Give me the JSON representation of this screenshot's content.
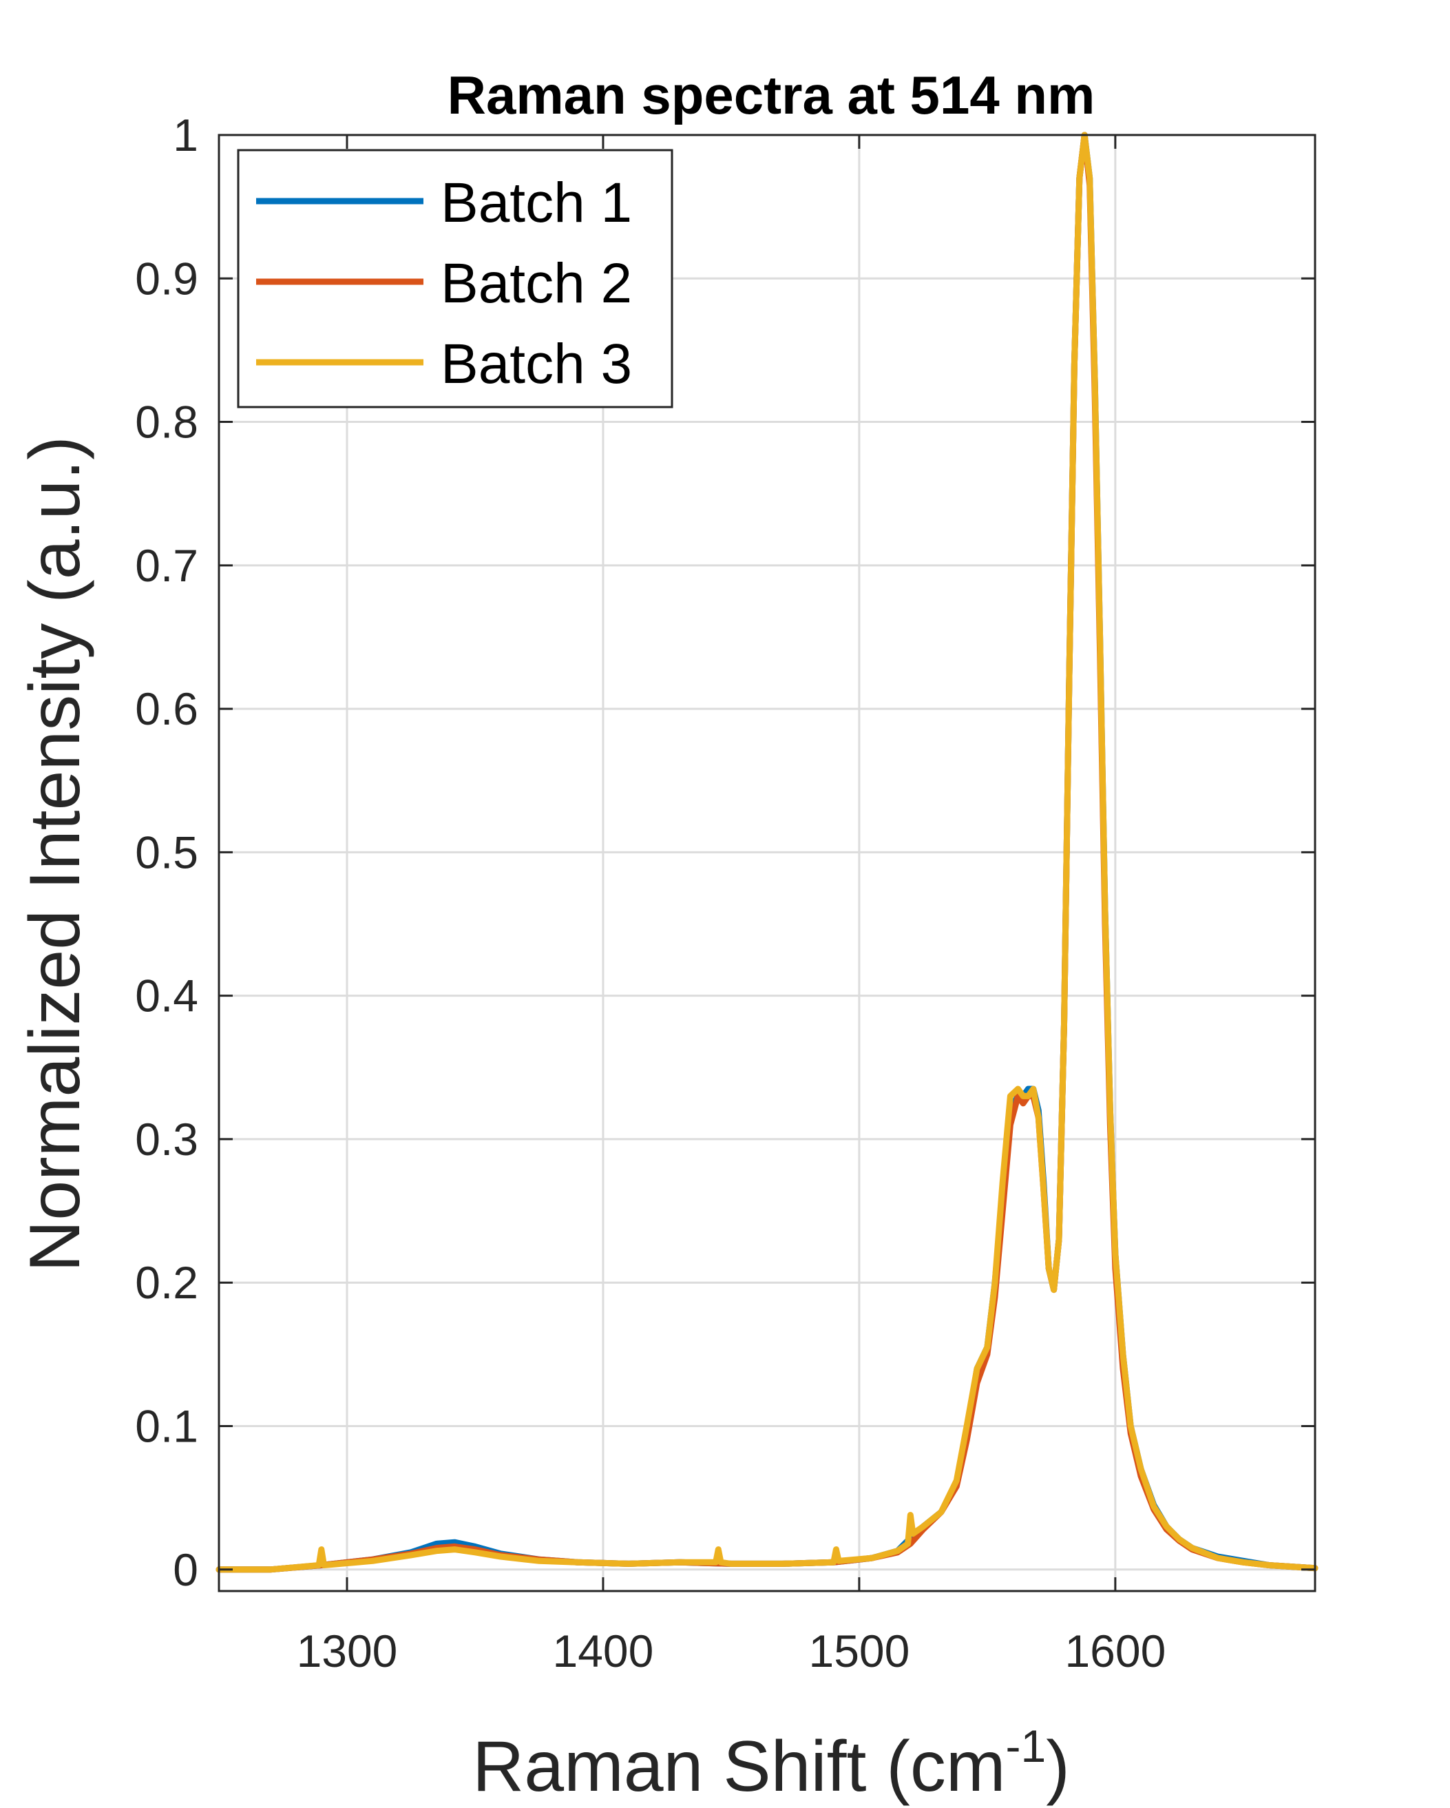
{
  "chart_data": {
    "type": "line",
    "title": "Raman spectra at 514 nm",
    "xlabel": "Raman Shift (cm",
    "xlabel_superscript": "-1",
    "xlabel_close": ")",
    "ylabel": "Normalized Intensity (a.u.)",
    "xlim": [
      1250,
      1678
    ],
    "ylim": [
      -0.015,
      1
    ],
    "xticks": [
      1300,
      1400,
      1500,
      1600
    ],
    "xtick_labels": [
      "1300",
      "1400",
      "1500",
      "1600"
    ],
    "yticks": [
      0,
      0.1,
      0.2,
      0.3,
      0.4,
      0.5,
      0.6,
      0.7,
      0.8,
      0.9,
      1
    ],
    "ytick_labels": [
      "0",
      "0.1",
      "0.2",
      "0.3",
      "0.4",
      "0.5",
      "0.6",
      "0.7",
      "0.8",
      "0.9",
      "1"
    ],
    "grid": true,
    "legend_position": "top-left",
    "series": [
      {
        "name": "Batch 1",
        "color": "#0072BD",
        "x": [
          1250,
          1270,
          1290,
          1310,
          1325,
          1335,
          1342,
          1350,
          1360,
          1375,
          1390,
          1410,
          1430,
          1450,
          1470,
          1490,
          1505,
          1515,
          1520,
          1525,
          1532,
          1538,
          1542,
          1546,
          1550,
          1553,
          1556,
          1559,
          1562,
          1564,
          1566,
          1568,
          1570,
          1572,
          1574,
          1576,
          1578,
          1580,
          1582,
          1584,
          1586,
          1588,
          1590,
          1592,
          1594,
          1596,
          1598,
          1600,
          1603,
          1606,
          1610,
          1615,
          1620,
          1625,
          1630,
          1640,
          1650,
          1660,
          1678
        ],
        "values": [
          0.0,
          0.0,
          0.003,
          0.007,
          0.012,
          0.018,
          0.019,
          0.016,
          0.011,
          0.007,
          0.005,
          0.004,
          0.005,
          0.004,
          0.004,
          0.005,
          0.008,
          0.013,
          0.022,
          0.03,
          0.04,
          0.06,
          0.095,
          0.14,
          0.155,
          0.2,
          0.26,
          0.32,
          0.33,
          0.33,
          0.335,
          0.335,
          0.32,
          0.27,
          0.21,
          0.195,
          0.23,
          0.38,
          0.62,
          0.84,
          0.97,
          1.0,
          0.97,
          0.83,
          0.65,
          0.46,
          0.32,
          0.22,
          0.15,
          0.1,
          0.07,
          0.045,
          0.03,
          0.021,
          0.015,
          0.009,
          0.006,
          0.003,
          0.001
        ]
      },
      {
        "name": "Batch 2",
        "color": "#D95319",
        "x": [
          1250,
          1270,
          1290,
          1310,
          1325,
          1335,
          1342,
          1350,
          1360,
          1375,
          1390,
          1410,
          1430,
          1450,
          1470,
          1490,
          1505,
          1515,
          1520,
          1525,
          1532,
          1538,
          1542,
          1546,
          1550,
          1553,
          1556,
          1559,
          1562,
          1564,
          1566,
          1568,
          1570,
          1572,
          1574,
          1576,
          1578,
          1580,
          1582,
          1584,
          1586,
          1588,
          1590,
          1592,
          1594,
          1596,
          1598,
          1600,
          1603,
          1606,
          1610,
          1615,
          1620,
          1625,
          1630,
          1640,
          1650,
          1660,
          1678
        ],
        "values": [
          0.0,
          0.0,
          0.003,
          0.007,
          0.011,
          0.015,
          0.016,
          0.014,
          0.01,
          0.007,
          0.005,
          0.004,
          0.005,
          0.004,
          0.004,
          0.005,
          0.008,
          0.012,
          0.018,
          0.028,
          0.04,
          0.058,
          0.09,
          0.13,
          0.15,
          0.19,
          0.25,
          0.31,
          0.33,
          0.325,
          0.33,
          0.33,
          0.315,
          0.265,
          0.21,
          0.195,
          0.23,
          0.38,
          0.62,
          0.84,
          0.97,
          1.0,
          0.965,
          0.82,
          0.64,
          0.45,
          0.31,
          0.21,
          0.14,
          0.095,
          0.065,
          0.042,
          0.028,
          0.02,
          0.014,
          0.008,
          0.005,
          0.003,
          0.001
        ]
      },
      {
        "name": "Batch 3",
        "color": "#EDB120",
        "x": [
          1250,
          1270,
          1289,
          1290,
          1291,
          1310,
          1325,
          1335,
          1342,
          1350,
          1360,
          1375,
          1390,
          1410,
          1430,
          1444,
          1445,
          1446,
          1450,
          1470,
          1490,
          1491,
          1492,
          1505,
          1515,
          1519,
          1520,
          1521,
          1525,
          1532,
          1538,
          1542,
          1546,
          1550,
          1553,
          1556,
          1559,
          1562,
          1564,
          1566,
          1568,
          1570,
          1572,
          1574,
          1576,
          1578,
          1580,
          1582,
          1584,
          1586,
          1588,
          1590,
          1592,
          1594,
          1596,
          1598,
          1600,
          1603,
          1606,
          1610,
          1615,
          1620,
          1625,
          1630,
          1640,
          1650,
          1660,
          1678
        ],
        "values": [
          0.0,
          0.0,
          0.003,
          0.014,
          0.003,
          0.006,
          0.01,
          0.013,
          0.014,
          0.012,
          0.009,
          0.006,
          0.005,
          0.004,
          0.005,
          0.005,
          0.014,
          0.005,
          0.004,
          0.004,
          0.005,
          0.014,
          0.006,
          0.008,
          0.013,
          0.018,
          0.038,
          0.025,
          0.03,
          0.04,
          0.062,
          0.1,
          0.14,
          0.155,
          0.2,
          0.27,
          0.33,
          0.335,
          0.33,
          0.33,
          0.335,
          0.315,
          0.265,
          0.21,
          0.195,
          0.23,
          0.38,
          0.62,
          0.84,
          0.97,
          1.0,
          0.97,
          0.83,
          0.65,
          0.46,
          0.32,
          0.22,
          0.15,
          0.1,
          0.07,
          0.044,
          0.03,
          0.021,
          0.015,
          0.008,
          0.005,
          0.003,
          0.001
        ]
      }
    ]
  }
}
